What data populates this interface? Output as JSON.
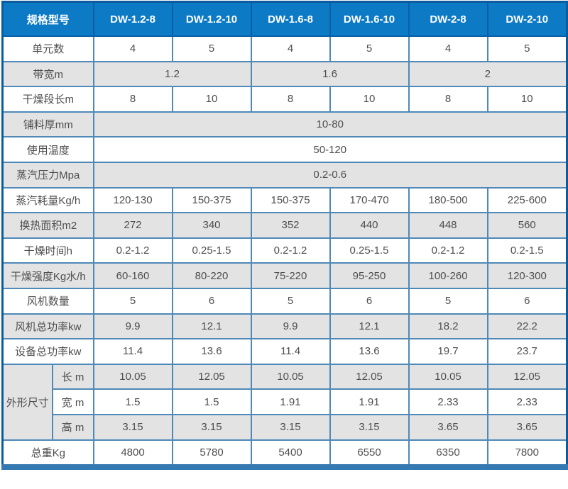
{
  "colors": {
    "header_bg": "#0c7ac5",
    "header_text": "#ffffff",
    "header_border": "#0a60a8",
    "outer_border": "#0b5c9e",
    "grid_border": "#4f89b7",
    "row_alt_bg": "#e3e3e3",
    "row_bg": "#ffffff",
    "body_text": "#4e4e4e",
    "bottom_bar": "#3579b2"
  },
  "table": {
    "header": {
      "label": "规格型号",
      "models": [
        "DW-1.2-8",
        "DW-1.2-10",
        "DW-1.6-8",
        "DW-1.6-10",
        "DW-2-8",
        "DW-2-10"
      ]
    },
    "rows": [
      {
        "label": "单元数",
        "cells": [
          "4",
          "5",
          "4",
          "5",
          "4",
          "5"
        ]
      },
      {
        "label": "带宽m",
        "cells": [
          {
            "t": "1.2",
            "colspan": 2
          },
          {
            "t": "1.6",
            "colspan": 2
          },
          {
            "t": "2",
            "colspan": 2
          }
        ]
      },
      {
        "label": "干燥段长m",
        "cells": [
          "8",
          "10",
          "8",
          "10",
          "8",
          "10"
        ]
      },
      {
        "label": "铺料厚mm",
        "cells": [
          {
            "t": "10-80",
            "colspan": 6
          }
        ]
      },
      {
        "label": "使用温度",
        "cells": [
          {
            "t": "50-120",
            "colspan": 6
          }
        ]
      },
      {
        "label": "蒸汽压力Mpa",
        "cells": [
          {
            "t": "0.2-0.6",
            "colspan": 6
          }
        ]
      },
      {
        "label": "蒸汽耗量Kg/h",
        "cells": [
          "120-130",
          "150-375",
          "150-375",
          "170-470",
          "180-500",
          "225-600"
        ]
      },
      {
        "label": "换热面积m2",
        "cells": [
          "272",
          "340",
          "352",
          "440",
          "448",
          "560"
        ]
      },
      {
        "label": "干燥时间h",
        "cells": [
          "0.2-1.2",
          "0.25-1.5",
          "0.2-1.2",
          "0.25-1.5",
          "0.2-1.2",
          "0.2-1.5"
        ]
      },
      {
        "label": "干燥强度Kg水/h",
        "cells": [
          "60-160",
          "80-220",
          "75-220",
          "95-250",
          "100-260",
          "120-300"
        ]
      },
      {
        "label": "风机数量",
        "cells": [
          "5",
          "6",
          "5",
          "6",
          "5",
          "6"
        ]
      },
      {
        "label": "风机总功率kw",
        "cells": [
          "9.9",
          "12.1",
          "9.9",
          "12.1",
          "18.2",
          "22.2"
        ]
      },
      {
        "label": "设备总功率kw",
        "cells": [
          "11.4",
          "13.6",
          "11.4",
          "13.6",
          "19.7",
          "23.7"
        ]
      },
      {
        "group": "外形尺寸",
        "group_rowspan": 3,
        "sublabel": "长 m",
        "cells": [
          "10.05",
          "12.05",
          "10.05",
          "12.05",
          "10.05",
          "12.05"
        ]
      },
      {
        "sublabel": "宽 m",
        "cells": [
          "1.5",
          "1.5",
          "1.91",
          "1.91",
          "2.33",
          "2.33"
        ]
      },
      {
        "sublabel": "高 m",
        "cells": [
          "3.15",
          "3.15",
          "3.15",
          "3.15",
          "3.65",
          "3.65"
        ]
      },
      {
        "label": "总重Kg",
        "cells": [
          "4800",
          "5780",
          "5400",
          "6550",
          "6350",
          "7800"
        ]
      }
    ]
  }
}
